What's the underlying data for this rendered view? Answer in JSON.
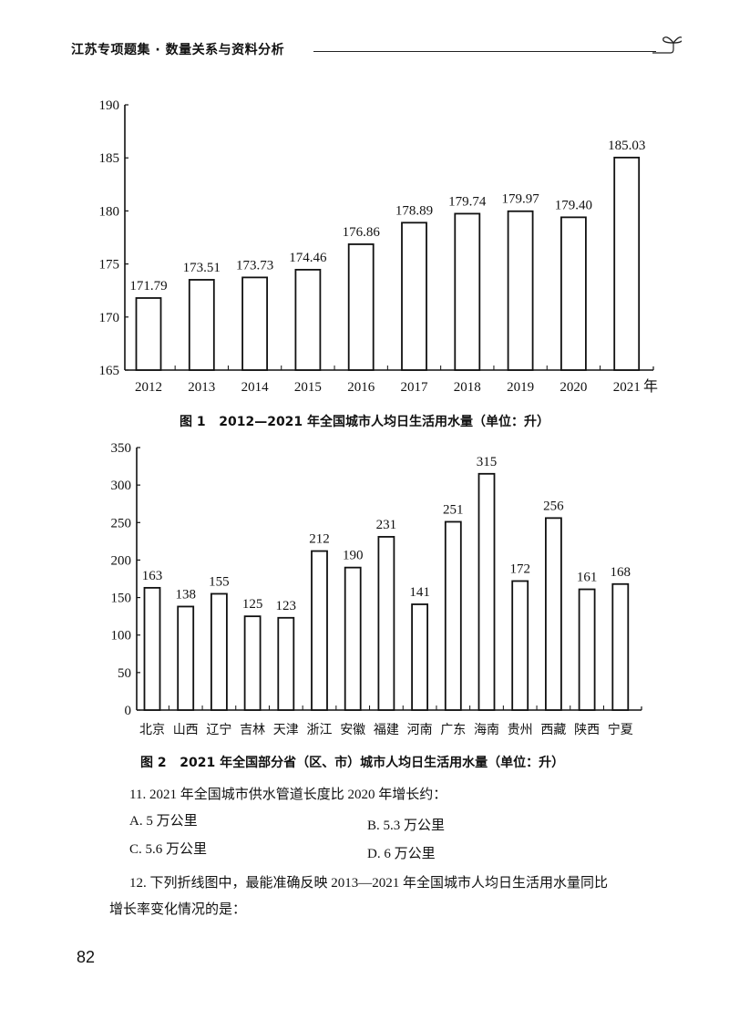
{
  "header": {
    "title": "江苏专项题集 · 数量关系与资料分析",
    "icon": "sprout-leaf-icon"
  },
  "figure1": {
    "caption": "图 1   2012—2021 年全国城市人均日生活用水量（单位：升）",
    "x_unit": "年"
  },
  "figure2": {
    "caption": "图 2   2021 年全国部分省（区、市）城市人均日生活用水量（单位：升）"
  },
  "chart_data": [
    {
      "type": "bar",
      "title": "2012—2021 年全国城市人均日生活用水量（单位：升）",
      "xlabel": "年",
      "ylabel": "",
      "ylim": [
        165,
        190
      ],
      "yticks": [
        165,
        170,
        175,
        180,
        185,
        190
      ],
      "grid": false,
      "categories": [
        "2012",
        "2013",
        "2014",
        "2015",
        "2016",
        "2017",
        "2018",
        "2019",
        "2020",
        "2021"
      ],
      "values": [
        171.79,
        173.51,
        173.73,
        174.46,
        176.86,
        178.89,
        179.74,
        179.97,
        179.4,
        185.03
      ],
      "labels": [
        "171.79",
        "173.51",
        "173.73",
        "174.46",
        "176.86",
        "178.89",
        "179.74",
        "179.97",
        "179.40",
        "185.03"
      ]
    },
    {
      "type": "bar",
      "title": "2021 年全国部分省（区、市）城市人均日生活用水量（单位：升）",
      "xlabel": "",
      "ylabel": "",
      "ylim": [
        0,
        350
      ],
      "yticks": [
        0,
        50,
        100,
        150,
        200,
        250,
        300,
        350
      ],
      "grid": false,
      "categories": [
        "北京",
        "山西",
        "辽宁",
        "吉林",
        "天津",
        "浙江",
        "安徽",
        "福建",
        "河南",
        "广东",
        "海南",
        "贵州",
        "西藏",
        "陕西",
        "宁夏"
      ],
      "values": [
        163,
        138,
        155,
        125,
        123,
        212,
        190,
        231,
        141,
        251,
        315,
        172,
        256,
        161,
        168
      ],
      "labels": [
        "163",
        "138",
        "155",
        "125",
        "123",
        "212",
        "190",
        "231",
        "141",
        "251",
        "315",
        "172",
        "256",
        "161",
        "168"
      ]
    }
  ],
  "questions": [
    {
      "number": "11.",
      "stem": "11. 2021 年全国城市供水管道长度比 2020 年增长约：",
      "options": {
        "A": "A. 5 万公里",
        "B": "B. 5.3 万公里",
        "C": "C. 5.6 万公里",
        "D": "D. 6 万公里"
      }
    },
    {
      "number": "12.",
      "stem_line1": "12. 下列折线图中，最能准确反映 2013—2021 年全国城市人均日生活用水量同比",
      "stem_line2": "增长率变化情况的是："
    }
  ],
  "page_number": "82"
}
